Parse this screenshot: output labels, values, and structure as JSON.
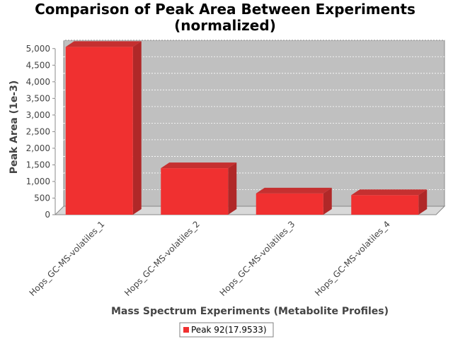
{
  "chart_data": {
    "type": "bar",
    "title_lines": [
      "Comparison of Peak Area Between Experiments",
      "(normalized)"
    ],
    "xlabel": "Mass Spectrum Experiments (Metabolite Profiles)",
    "ylabel": "Peak Area (1e-3)",
    "categories": [
      "Hops_GC-MS-volatiles_1",
      "Hops_GC-MS-volatiles_2",
      "Hops_GC-MS-volatiles_3",
      "Hops_GC-MS-volatiles_4"
    ],
    "series": [
      {
        "name": "Peak 92(17.9533)",
        "values": [
          5050,
          1400,
          640,
          590
        ],
        "color": "#f03030"
      }
    ],
    "ylim": [
      0,
      5250
    ],
    "yticks": [
      0,
      500,
      1000,
      1500,
      2000,
      2500,
      3000,
      3500,
      4000,
      4500,
      5000
    ],
    "ytick_labels": [
      "0",
      "500",
      "1,000",
      "1,500",
      "2,000",
      "2,500",
      "3,000",
      "3,500",
      "4,000",
      "4,500",
      "5,000"
    ],
    "grid": true,
    "legend_position": "bottom-center",
    "plot_background": "#c0c0c0"
  }
}
